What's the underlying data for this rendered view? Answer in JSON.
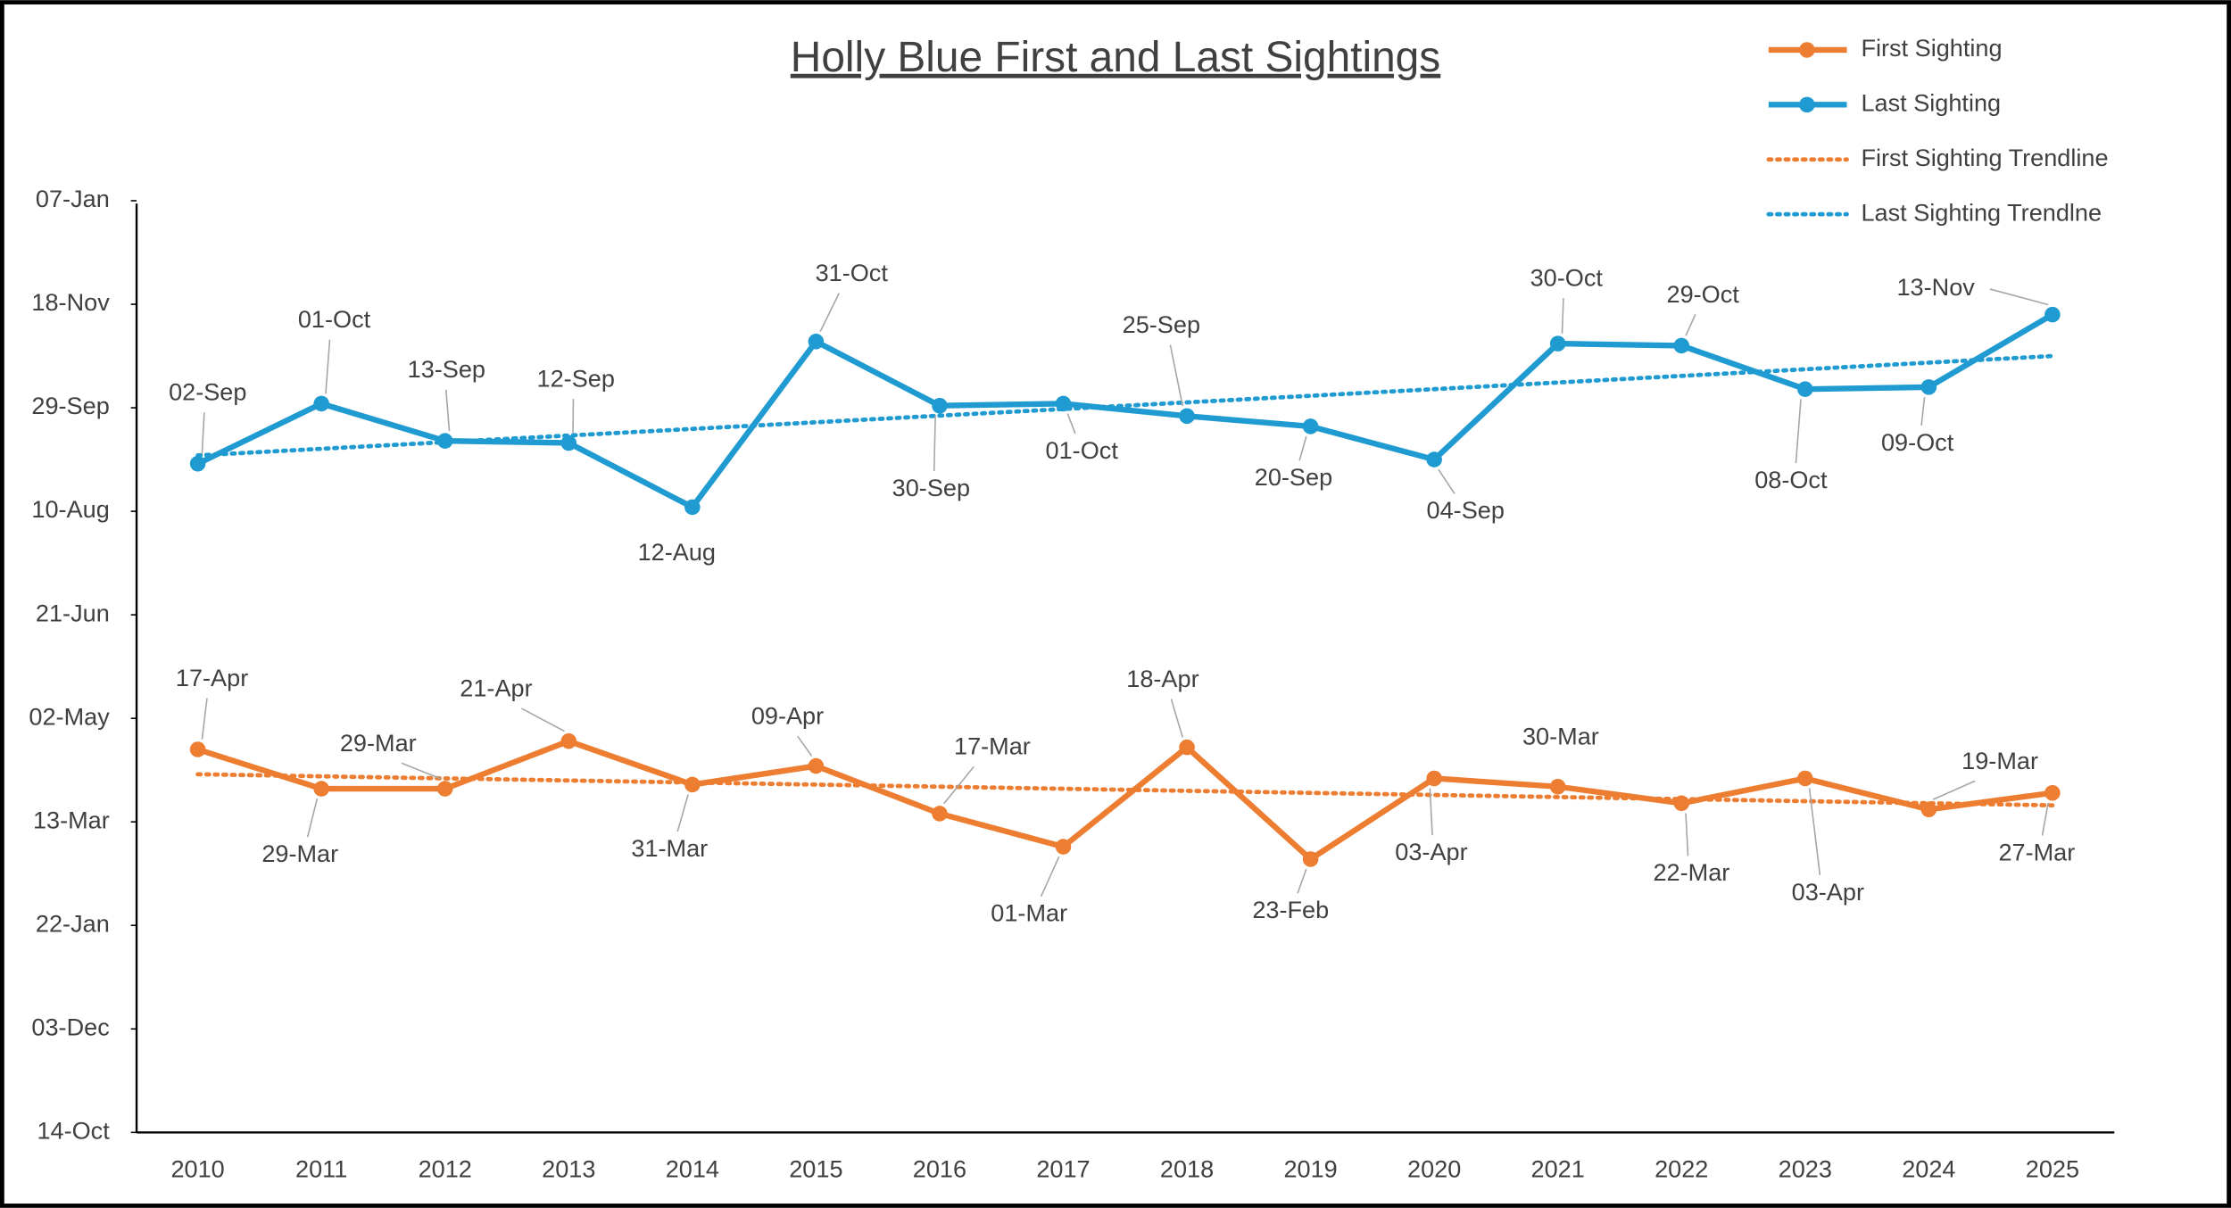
{
  "chart_data": {
    "type": "line",
    "title": "Holly Blue First and Last Sightings",
    "categories": [
      "2010",
      "2011",
      "2012",
      "2013",
      "2014",
      "2015",
      "2016",
      "2017",
      "2018",
      "2019",
      "2020",
      "2021",
      "2022",
      "2023",
      "2024",
      "2025"
    ],
    "series": [
      {
        "name": "First Sighting",
        "color": "#ed7d31",
        "values": [
          107,
          88,
          88,
          111,
          90,
          99,
          76,
          60,
          108,
          54,
          93,
          89,
          81,
          93,
          78,
          86
        ],
        "value_labels": [
          "17-Apr",
          "29-Mar",
          "29-Mar",
          "21-Apr",
          "31-Mar",
          "09-Apr",
          "17-Mar",
          "01-Mar",
          "18-Apr",
          "23-Feb",
          "03-Apr",
          "30-Mar",
          "22-Mar",
          "03-Apr",
          "19-Mar",
          "27-Mar"
        ]
      },
      {
        "name": "Last Sighting",
        "color": "#1f9bd1",
        "values": [
          245,
          274,
          256,
          255,
          224,
          304,
          273,
          274,
          268,
          263,
          247,
          303,
          302,
          281,
          282,
          317
        ],
        "value_labels": [
          "02-Sep",
          "01-Oct",
          "13-Sep",
          "12-Sep",
          "12-Aug",
          "31-Oct",
          "30-Sep",
          "01-Oct",
          "25-Sep",
          "20-Sep",
          "04-Sep",
          "30-Oct",
          "29-Oct",
          "08-Oct",
          "09-Oct",
          "13-Nov"
        ]
      }
    ],
    "trendlines": [
      {
        "name": "First Sighting Trendline",
        "color": "#ed7d31",
        "values": [
          95,
          80
        ]
      },
      {
        "name": "Last Sighting Trendlne",
        "color": "#1f9bd1",
        "values": [
          249,
          297
        ]
      }
    ],
    "ylim": [
      -78,
      372
    ],
    "yticks": [
      {
        "value": -78,
        "label": "14-Oct"
      },
      {
        "value": -28,
        "label": "03-Dec"
      },
      {
        "value": 22,
        "label": "22-Jan"
      },
      {
        "value": 72,
        "label": "13-Mar"
      },
      {
        "value": 122,
        "label": "02-May"
      },
      {
        "value": 172,
        "label": "21-Jun"
      },
      {
        "value": 222,
        "label": "10-Aug"
      },
      {
        "value": 272,
        "label": "29-Sep"
      },
      {
        "value": 322,
        "label": "18-Nov"
      },
      {
        "value": 372,
        "label": "07-Jan"
      }
    ],
    "legend": "top-right"
  }
}
